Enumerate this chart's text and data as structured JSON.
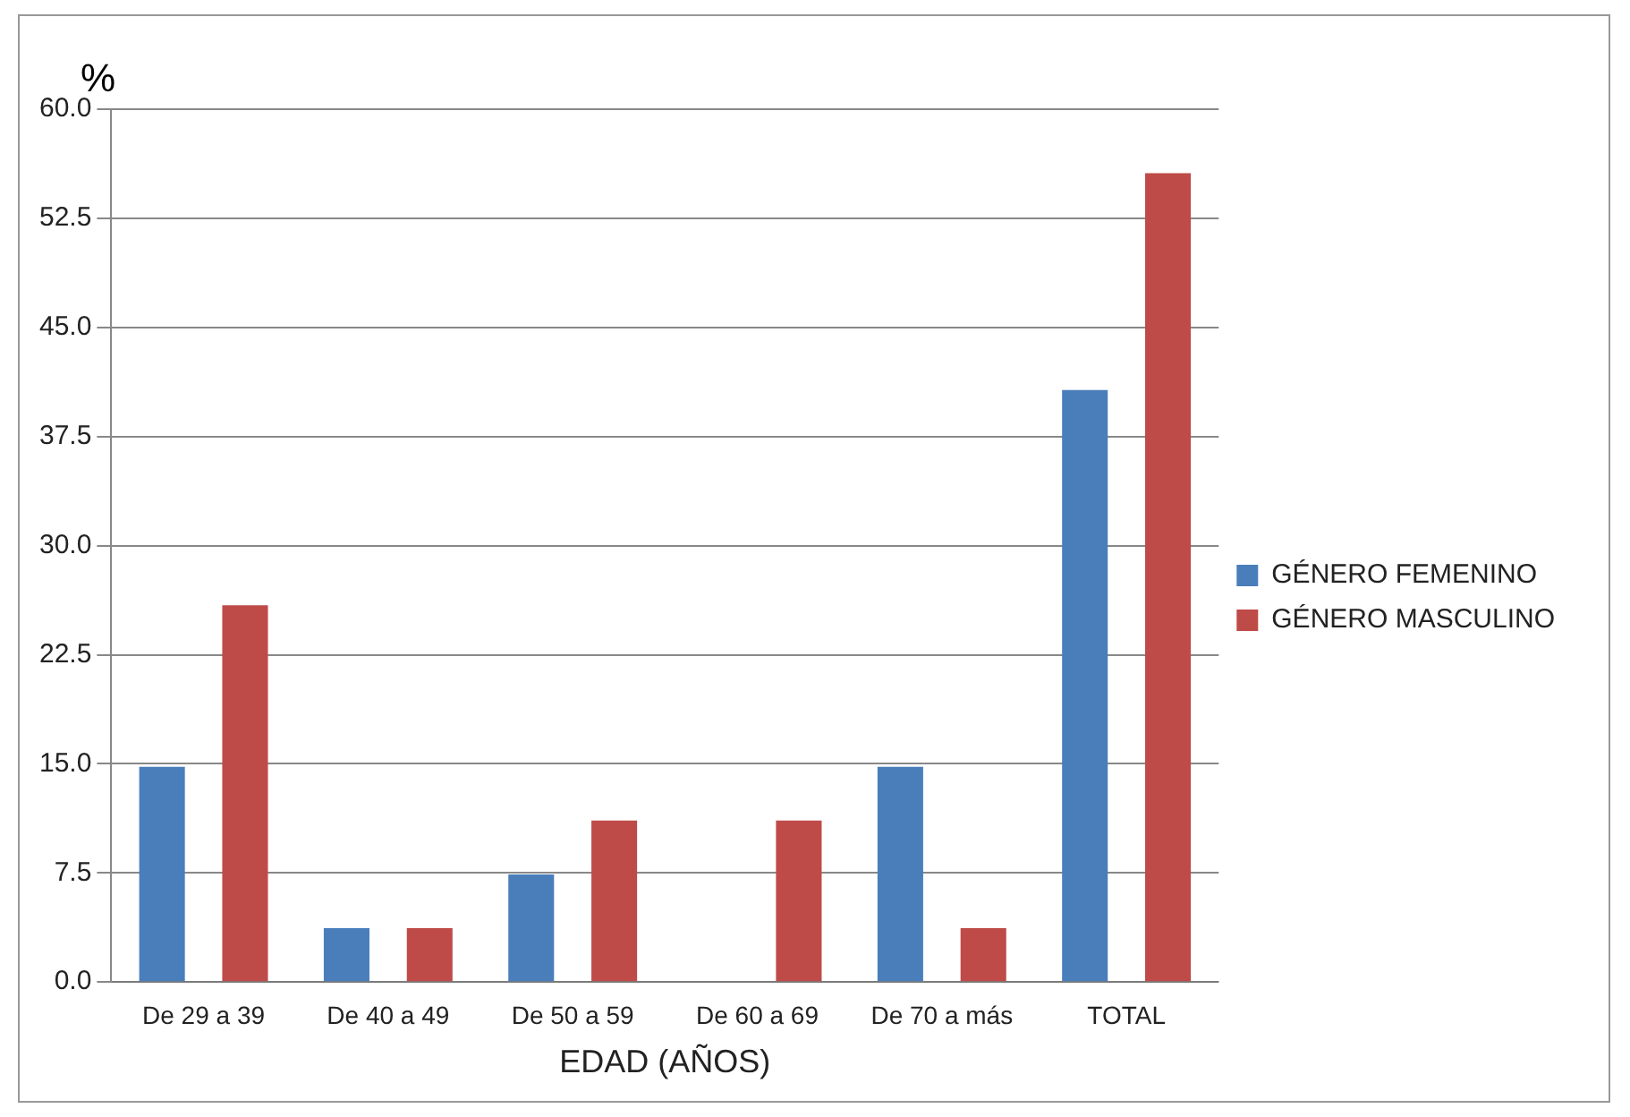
{
  "chart_data": {
    "type": "bar",
    "ylabel": "%",
    "xlabel": "EDAD (AÑOS)",
    "categories": [
      "De 29 a 39",
      "De 40 a 49",
      "De 50 a 59",
      "De 60 a 69",
      "De 70 a más",
      "TOTAL"
    ],
    "series": [
      {
        "name": "GÉNERO FEMENINO",
        "color": "#4a7ebb",
        "values": [
          14.8,
          3.7,
          7.4,
          0,
          14.8,
          40.7
        ]
      },
      {
        "name": "GÉNERO MASCULINO",
        "color": "#be4b48",
        "values": [
          25.9,
          3.7,
          11.1,
          11.1,
          3.7,
          55.6
        ]
      }
    ],
    "ylim": [
      0,
      60
    ],
    "yticks": [
      {
        "value": 0,
        "label": "0.0"
      },
      {
        "value": 7.5,
        "label": "7.5"
      },
      {
        "value": 15,
        "label": "15.0"
      },
      {
        "value": 22.5,
        "label": "22.5"
      },
      {
        "value": 30,
        "label": "30.0"
      },
      {
        "value": 37.5,
        "label": "37.5"
      },
      {
        "value": 45,
        "label": "45.0"
      },
      {
        "value": 52.5,
        "label": "52.5"
      },
      {
        "value": 60,
        "label": "60.0"
      }
    ],
    "grid": "y",
    "legend": "right"
  }
}
